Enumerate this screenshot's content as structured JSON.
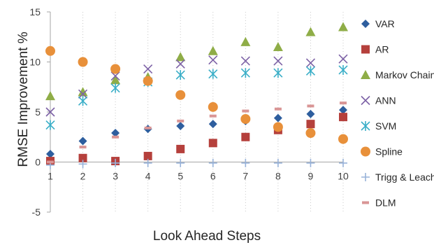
{
  "chart_data": {
    "type": "scatter",
    "title": "",
    "xlabel": "Look Ahead Steps",
    "ylabel": "RMSE Improvement %",
    "xlim": [
      1,
      10
    ],
    "ylim": [
      -5,
      15
    ],
    "x_ticks": [
      "1",
      "2",
      "3",
      "4",
      "5",
      "6",
      "7",
      "8",
      "9",
      "10"
    ],
    "y_ticks": [
      "-5",
      "0",
      "5",
      "10",
      "15"
    ],
    "grid": "vertical dotted",
    "legend_position": "right",
    "x": [
      1,
      2,
      3,
      4,
      5,
      6,
      7,
      8,
      9,
      10
    ],
    "series": [
      {
        "name": "VAR",
        "marker": "diamond",
        "color": "#2e5e9e",
        "values": [
          0.8,
          2.1,
          2.9,
          3.3,
          3.6,
          3.8,
          4.1,
          4.4,
          4.8,
          5.2
        ]
      },
      {
        "name": "AR",
        "marker": "square",
        "color": "#b5403c",
        "values": [
          0.1,
          0.4,
          0.1,
          0.6,
          1.3,
          1.9,
          2.5,
          3.2,
          3.8,
          4.5
        ]
      },
      {
        "name": "Markov Chain",
        "marker": "triangle",
        "color": "#8fad47",
        "values": [
          6.6,
          7.0,
          8.2,
          8.5,
          10.5,
          11.1,
          12.0,
          11.5,
          13.0,
          13.5
        ]
      },
      {
        "name": "ANN",
        "marker": "x",
        "color": "#7d62a6",
        "values": [
          5.0,
          6.8,
          8.6,
          9.3,
          9.8,
          10.2,
          10.1,
          10.1,
          9.9,
          10.3
        ]
      },
      {
        "name": "SVM",
        "marker": "star",
        "color": "#3aaec7",
        "values": [
          3.7,
          6.1,
          7.4,
          8.0,
          8.7,
          8.8,
          8.9,
          8.9,
          9.1,
          9.2
        ]
      },
      {
        "name": "Spline",
        "marker": "circle",
        "color": "#e8903a",
        "values": [
          11.1,
          10.0,
          9.3,
          8.1,
          6.7,
          5.5,
          4.3,
          3.5,
          2.9,
          2.3
        ]
      },
      {
        "name": "Trigg & Leach",
        "marker": "plus",
        "color": "#97b2d9",
        "values": [
          -0.3,
          -0.2,
          -0.1,
          -0.1,
          -0.1,
          -0.1,
          -0.1,
          -0.1,
          -0.1,
          -0.1
        ]
      },
      {
        "name": "DLM",
        "marker": "dash",
        "color": "#d99595",
        "values": [
          0.0,
          1.5,
          2.5,
          3.4,
          4.1,
          4.6,
          5.1,
          5.3,
          5.6,
          5.9
        ]
      }
    ]
  }
}
